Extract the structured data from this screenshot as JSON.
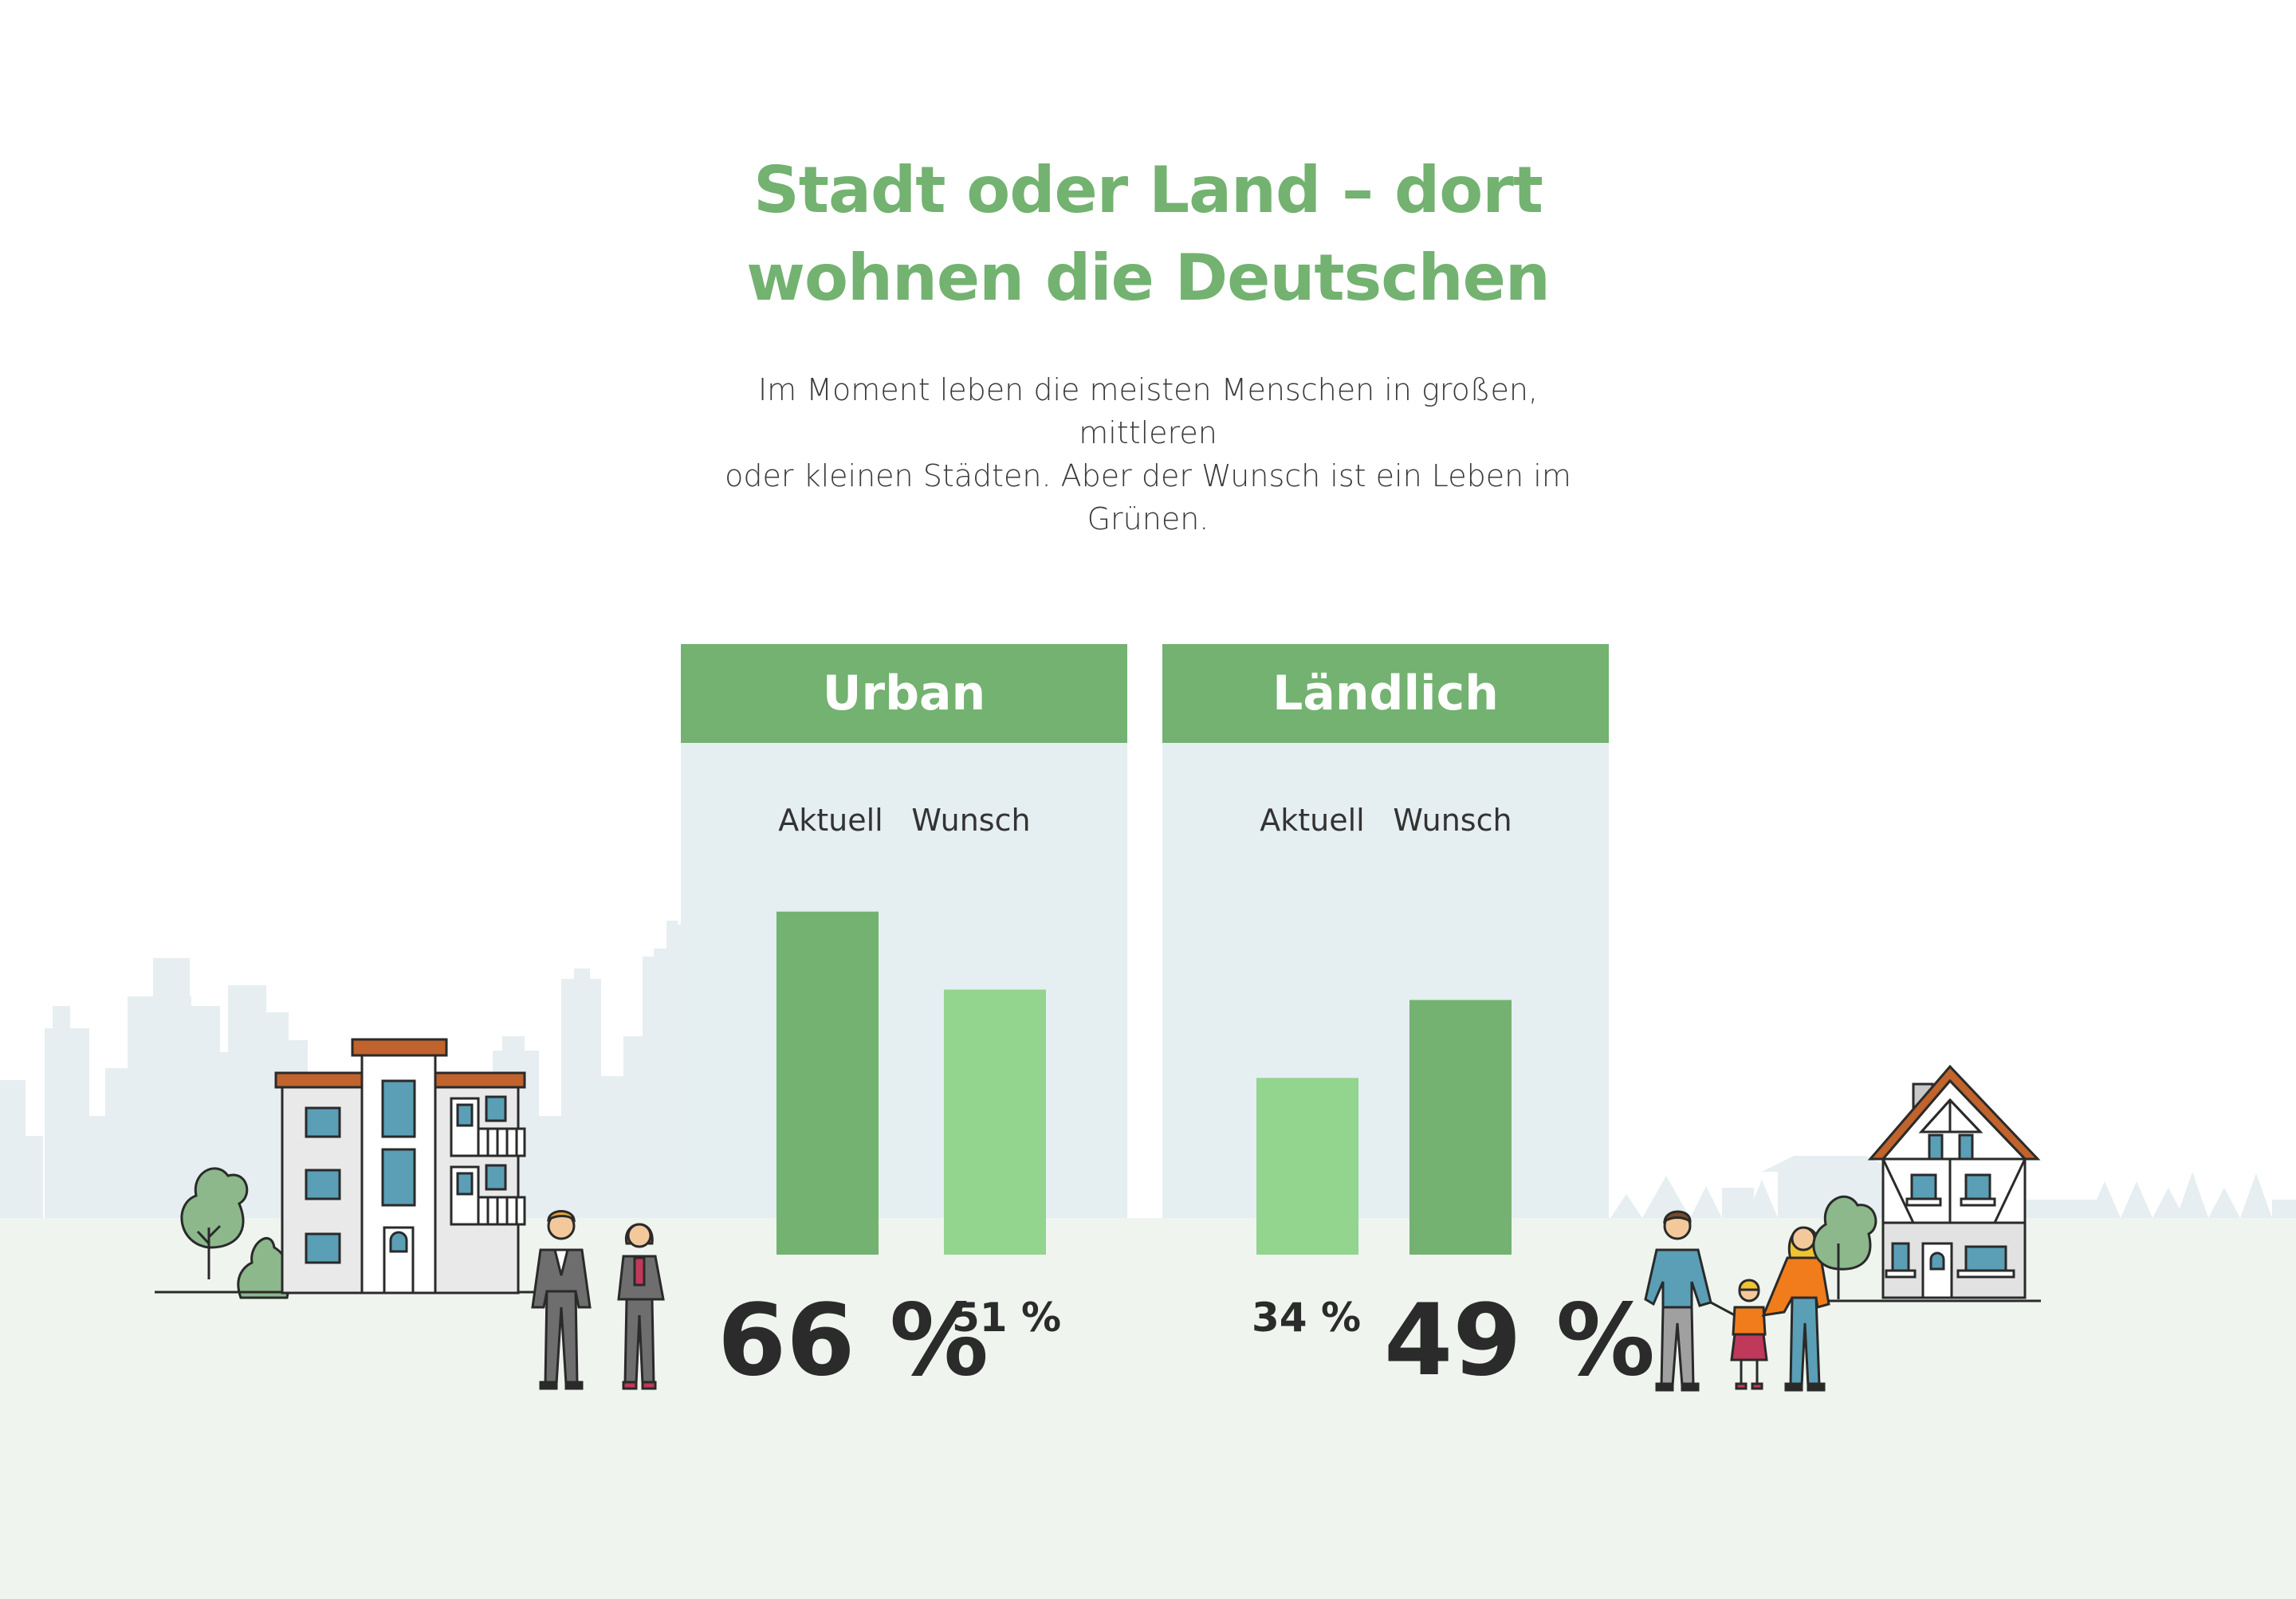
{
  "header": {
    "title_line1": "Stadt oder Land – dort",
    "title_line2": "wohnen die Deutschen",
    "subtitle_line1": "Im Moment leben die meisten Menschen in großen, mittleren",
    "subtitle_line2": "oder kleinen Städten. Aber der Wunsch ist ein Leben im",
    "subtitle_line3": "Grünen."
  },
  "colors": {
    "accent": "#73b270",
    "light_accent": "#93d48f",
    "panel_bg": "#e5eef1",
    "ground": "#eff4ef",
    "skyline": "#e6eef1",
    "text_dark": "#2b2b2b"
  },
  "chart_data": [
    {
      "type": "bar",
      "title": "Urban",
      "categories": [
        "Aktuell",
        "Wunsch"
      ],
      "values": [
        66,
        51
      ],
      "labels": [
        "66 %",
        "51 %"
      ],
      "unit": "%",
      "bar_colors": [
        "#73b270",
        "#93d48f"
      ],
      "ylim": [
        0,
        100
      ]
    },
    {
      "type": "bar",
      "title": "Ländlich",
      "categories": [
        "Aktuell",
        "Wunsch"
      ],
      "values": [
        34,
        49
      ],
      "labels": [
        "34 %",
        "49 %"
      ],
      "unit": "%",
      "bar_colors": [
        "#93d48f",
        "#73b270"
      ],
      "ylim": [
        0,
        100
      ]
    }
  ]
}
